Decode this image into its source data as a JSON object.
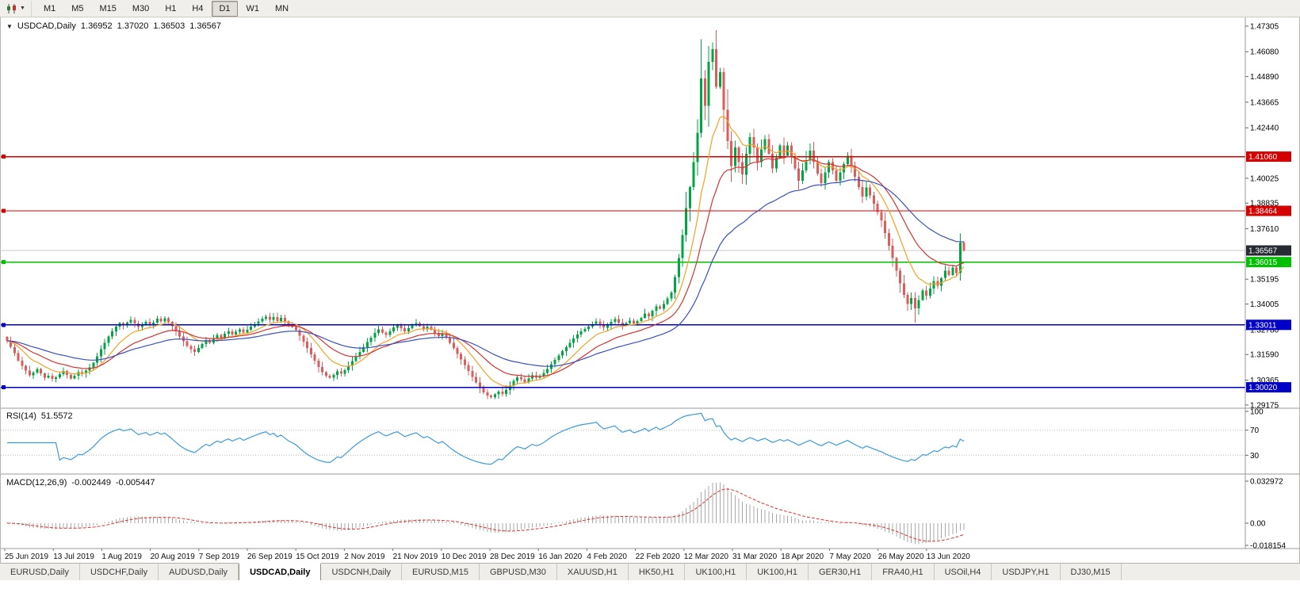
{
  "toolbar": {
    "timeframes": [
      "M1",
      "M5",
      "M15",
      "M30",
      "H1",
      "H4",
      "D1",
      "W1",
      "MN"
    ],
    "active_timeframe": "D1",
    "chart_type_icon": "candlestick-chart-icon"
  },
  "chart": {
    "symbol_label": "USDCAD,Daily",
    "ohlc": {
      "open": "1.36952",
      "high": "1.37020",
      "low": "1.36503",
      "close": "1.36567"
    },
    "current_price": {
      "label": "1.36567",
      "price": 1.36567,
      "badge_color": "#262b33"
    },
    "price_axis_labels": [
      {
        "text": "1.47305",
        "price": 1.47305
      },
      {
        "text": "1.46080",
        "price": 1.4608
      },
      {
        "text": "1.44890",
        "price": 1.4489
      },
      {
        "text": "1.43665",
        "price": 1.43665
      },
      {
        "text": "1.42440",
        "price": 1.4244
      },
      {
        "text": "1.40025",
        "price": 1.40025
      },
      {
        "text": "1.38835",
        "price": 1.38835
      },
      {
        "text": "1.37610",
        "price": 1.3761
      },
      {
        "text": "1.35195",
        "price": 1.35195
      },
      {
        "text": "1.34005",
        "price": 1.34005
      },
      {
        "text": "1.32780",
        "price": 1.3278
      },
      {
        "text": "1.31590",
        "price": 1.3159
      },
      {
        "text": "1.30365",
        "price": 1.30365
      },
      {
        "text": "1.29175",
        "price": 1.29175
      }
    ]
  },
  "rsi_panel": {
    "name": "RSI(14)",
    "value": "51.5572",
    "axis_labels": [
      {
        "text": "100",
        "v": 100
      },
      {
        "text": "70",
        "v": 70
      },
      {
        "text": "30",
        "v": 30
      }
    ]
  },
  "macd_panel": {
    "name": "MACD(12,26,9)",
    "main_value": "-0.002449",
    "signal_value": "-0.005447",
    "axis_labels": [
      {
        "text": "0.032972",
        "v": 0.032972
      },
      {
        "text": "0.00",
        "v": 0
      },
      {
        "text": "-0.018154",
        "v": -0.018154
      }
    ]
  },
  "date_axis": {
    "labels": [
      "25 Jun 2019",
      "13 Jul 2019",
      "1 Aug 2019",
      "20 Aug 2019",
      "7 Sep 2019",
      "26 Sep 2019",
      "15 Oct 2019",
      "2 Nov 2019",
      "21 Nov 2019",
      "10 Dec 2019",
      "28 Dec 2019",
      "16 Jan 2020",
      "4 Feb 2020",
      "22 Feb 2020",
      "12 Mar 2020",
      "31 Mar 2020",
      "18 Apr 2020",
      "7 May 2020",
      "26 May 2020",
      "13 Jun 2020"
    ]
  },
  "tabs": [
    {
      "label": "EURUSD,Daily",
      "active": false
    },
    {
      "label": "USDCHF,Daily",
      "active": false
    },
    {
      "label": "AUDUSD,Daily",
      "active": false
    },
    {
      "label": "USDCAD,Daily",
      "active": true
    },
    {
      "label": "USDCNH,Daily",
      "active": false
    },
    {
      "label": "EURUSD,M15",
      "active": false
    },
    {
      "label": "GBPUSD,M30",
      "active": false
    },
    {
      "label": "XAUUSD,H1",
      "active": false
    },
    {
      "label": "HK50,H1",
      "active": false
    },
    {
      "label": "UK100,H1",
      "active": false
    },
    {
      "label": "UK100,H1",
      "active": false
    },
    {
      "label": "GER30,H1",
      "active": false
    },
    {
      "label": "FRA40,H1",
      "active": false
    },
    {
      "label": "USOil,H4",
      "active": false
    },
    {
      "label": "USDJPY,H1",
      "active": false
    },
    {
      "label": "DJ30,M15",
      "active": false
    }
  ],
  "chart_data": {
    "type": "candlestick",
    "symbol": "USDCAD",
    "timeframe": "D1",
    "price_range": {
      "top": 1.4772,
      "bottom": 1.2902
    },
    "closes": [
      1.3225,
      1.3195,
      1.3165,
      1.313,
      1.3105,
      1.3082,
      1.306,
      1.3072,
      1.309,
      1.3068,
      1.3048,
      1.3058,
      1.3042,
      1.305,
      1.3065,
      1.308,
      1.3062,
      1.3045,
      1.3058,
      1.3075,
      1.3068,
      1.3082,
      1.3098,
      1.312,
      1.315,
      1.3185,
      1.3215,
      1.3245,
      1.327,
      1.3292,
      1.331,
      1.3298,
      1.3312,
      1.3325,
      1.3308,
      1.329,
      1.3302,
      1.3315,
      1.3298,
      1.3312,
      1.333,
      1.3318,
      1.3332,
      1.3315,
      1.3295,
      1.327,
      1.3245,
      1.3222,
      1.32,
      1.3185,
      1.3172,
      1.319,
      1.321,
      1.3228,
      1.3215,
      1.3235,
      1.3252,
      1.324,
      1.3258,
      1.327,
      1.3255,
      1.3268,
      1.328,
      1.3265,
      1.3278,
      1.3292,
      1.3305,
      1.3318,
      1.333,
      1.334,
      1.3325,
      1.3338,
      1.332,
      1.3335,
      1.3318,
      1.3302,
      1.329,
      1.3275,
      1.325,
      1.322,
      1.319,
      1.316,
      1.313,
      1.31,
      1.3075,
      1.3058,
      1.3048,
      1.3062,
      1.3078,
      1.3068,
      1.3085,
      1.3105,
      1.3128,
      1.315,
      1.3172,
      1.3195,
      1.3218,
      1.324,
      1.3262,
      1.328,
      1.3265,
      1.3252,
      1.327,
      1.3288,
      1.33,
      1.3285,
      1.327,
      1.3285,
      1.3298,
      1.331,
      1.3295,
      1.328,
      1.3292,
      1.3278,
      1.3262,
      1.3248,
      1.326,
      1.324,
      1.3215,
      1.319,
      1.3162,
      1.3135,
      1.3108,
      1.308,
      1.3052,
      1.3025,
      1.3,
      1.2978,
      1.2962,
      1.2955,
      1.2968,
      1.2982,
      1.297,
      1.299,
      1.301,
      1.3032,
      1.305,
      1.304,
      1.3028,
      1.3045,
      1.306,
      1.3048,
      1.3055,
      1.307,
      1.309,
      1.3112,
      1.3134,
      1.3155,
      1.3175,
      1.3195,
      1.3215,
      1.3235,
      1.3255,
      1.327,
      1.3282,
      1.3292,
      1.3305,
      1.3318,
      1.3302,
      1.3288,
      1.33,
      1.3315,
      1.3328,
      1.3312,
      1.3298,
      1.331,
      1.3322,
      1.3308,
      1.332,
      1.3335,
      1.3355,
      1.3342,
      1.3368,
      1.339,
      1.3378,
      1.34,
      1.3428,
      1.3455,
      1.353,
      1.362,
      1.373,
      1.386,
      1.396,
      1.408,
      1.422,
      1.448,
      1.435,
      1.456,
      1.462,
      1.444,
      1.451,
      1.433,
      1.418,
      1.406,
      1.415,
      1.408,
      1.402,
      1.412,
      1.42,
      1.415,
      1.408,
      1.414,
      1.419,
      1.412,
      1.405,
      1.41,
      1.416,
      1.411,
      1.416,
      1.4105,
      1.405,
      1.399,
      1.404,
      1.409,
      1.4135,
      1.408,
      1.4025,
      1.398,
      1.403,
      1.408,
      1.404,
      1.399,
      1.403,
      1.407,
      1.411,
      1.406,
      1.401,
      1.396,
      1.3915,
      1.3958,
      1.392,
      1.388,
      1.384,
      1.38,
      1.374,
      1.368,
      1.362,
      1.356,
      1.35,
      1.3445,
      1.34,
      1.343,
      1.338,
      1.342,
      1.3465,
      1.344,
      1.3475,
      1.351,
      1.3488,
      1.3525,
      1.356,
      1.354,
      1.3575,
      1.3548,
      1.3695,
      1.36567
    ],
    "candle_overrides": {
      "185": {
        "high": 1.4668
      },
      "242": {
        "low": 1.3312
      },
      "255": {
        "open": 1.36952,
        "high": 1.3702,
        "low": 1.36503,
        "close": 1.36567
      }
    },
    "horizontal_levels": [
      {
        "label": "1.41060",
        "price": 1.4106,
        "color": "#d40000"
      },
      {
        "label": "1.38464",
        "price": 1.38464,
        "color": "#d40000"
      },
      {
        "label": "1.36015",
        "price": 1.36015,
        "color": "#00c000"
      },
      {
        "label": "1.33011",
        "price": 1.33011,
        "color": "#0000c8"
      },
      {
        "label": "1.30020",
        "price": 1.3002,
        "color": "#0000c8"
      }
    ],
    "moving_averages": [
      {
        "type": "ema",
        "period": 10,
        "color": "#f2a227"
      },
      {
        "type": "ema",
        "period": 21,
        "color": "#d43434"
      },
      {
        "type": "ema",
        "period": 45,
        "color": "#3a50c0"
      }
    ],
    "indicators": {
      "rsi": {
        "period": 14,
        "levels": [
          70,
          30
        ],
        "color": "#3e9adb"
      },
      "macd": {
        "fast": 12,
        "slow": 26,
        "signal": 9,
        "hist_color": "#a8a8a8",
        "signal_color": "#dd3333"
      }
    },
    "colors": {
      "bull": "#00a443",
      "bear": "#db5c5c",
      "current_price_line": "#c8c8c8"
    }
  }
}
